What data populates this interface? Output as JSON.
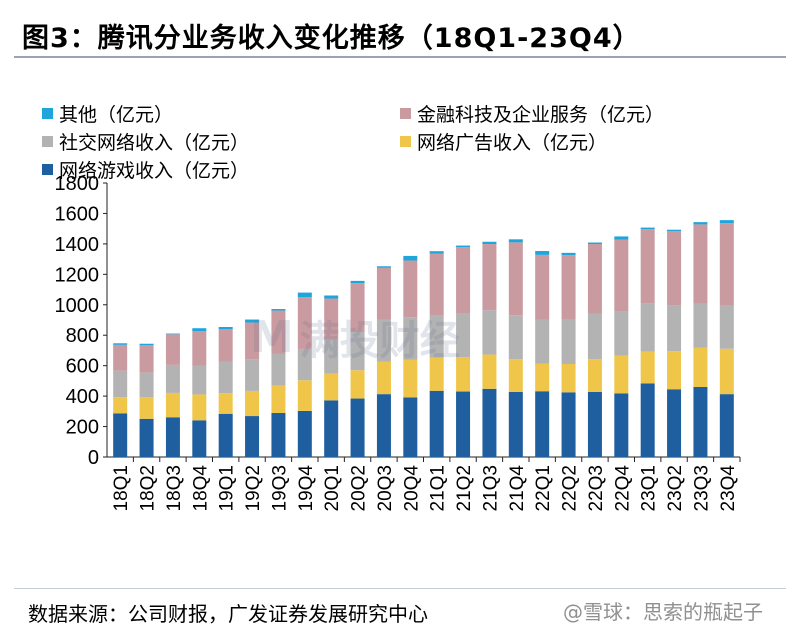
{
  "title": "图3：腾讯分业务收入变化推移（18Q1-23Q4）",
  "source": "数据来源：公司财报，广发证券发展研究中心",
  "watermark": {
    "logo": "M",
    "text": "满投财经"
  },
  "corner_mark": "@雪球：思索的瓶起子",
  "colors": {
    "games": "#1f5f9f",
    "ads": "#f0c64a",
    "social": "#b3b3b3",
    "fintech": "#c99aa0",
    "other": "#1ea5dc"
  },
  "chart_data": {
    "type": "bar",
    "stacked": true,
    "categories": [
      "18Q1",
      "18Q2",
      "18Q3",
      "18Q4",
      "19Q1",
      "19Q2",
      "19Q3",
      "19Q4",
      "20Q1",
      "20Q2",
      "20Q3",
      "20Q4",
      "21Q1",
      "21Q2",
      "21Q3",
      "21Q4",
      "22Q1",
      "22Q2",
      "22Q3",
      "22Q4",
      "23Q1",
      "23Q2",
      "23Q3",
      "23Q4"
    ],
    "ylim": [
      0,
      1800
    ],
    "yticks": [
      0,
      200,
      400,
      600,
      800,
      1000,
      1200,
      1400,
      1600,
      1800
    ],
    "series": [
      {
        "key": "games",
        "name": "网络游戏收入（亿元）",
        "values": [
          287,
          251,
          261,
          241,
          284,
          269,
          289,
          303,
          372,
          384,
          413,
          391,
          435,
          430,
          448,
          427,
          432,
          425,
          428,
          418,
          483,
          445,
          460,
          413
        ]
      },
      {
        "key": "ads",
        "name": "网络广告收入（亿元）",
        "values": [
          106,
          141,
          160,
          170,
          135,
          165,
          181,
          201,
          177,
          186,
          214,
          247,
          218,
          225,
          225,
          215,
          180,
          186,
          214,
          247,
          209,
          250,
          257,
          298
        ]
      },
      {
        "key": "social",
        "name": "社交网络收入（亿元）",
        "values": [
          174,
          162,
          184,
          190,
          208,
          209,
          207,
          206,
          226,
          251,
          276,
          281,
          280,
          286,
          291,
          289,
          291,
          290,
          298,
          289,
          319,
          301,
          291,
          282
        ]
      },
      {
        "key": "fintech",
        "name": "金融科技及企业服务（亿元）",
        "values": [
          170,
          180,
          201,
          225,
          212,
          240,
          285,
          340,
          266,
          321,
          340,
          372,
          404,
          438,
          435,
          479,
          425,
          425,
          459,
          475,
          486,
          487,
          520,
          543
        ]
      },
      {
        "key": "other",
        "name": "其他（亿元）",
        "values": [
          10,
          10,
          5,
          20,
          15,
          20,
          10,
          30,
          20,
          15,
          10,
          30,
          15,
          10,
          15,
          20,
          25,
          15,
          10,
          20,
          10,
          10,
          15,
          20
        ]
      }
    ],
    "legend_order": [
      "other",
      "fintech",
      "social",
      "ads",
      "games"
    ],
    "legend_placement": "top"
  }
}
